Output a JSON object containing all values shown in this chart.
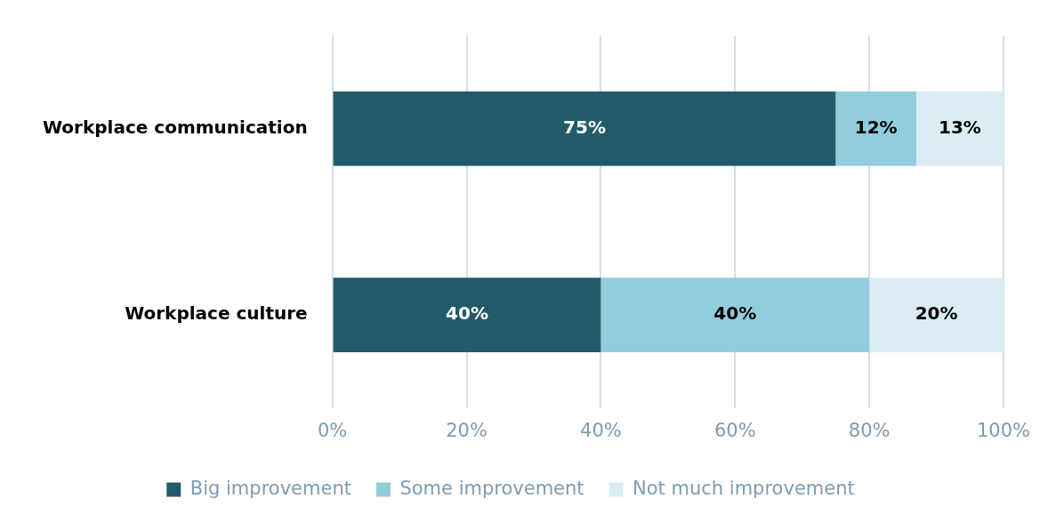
{
  "chart_data": {
    "type": "bar",
    "orientation": "horizontal",
    "stacked": true,
    "categories": [
      "Workplace communication",
      "Workplace culture"
    ],
    "series": [
      {
        "name": "Big improvement",
        "color": "#235a69",
        "values": [
          75,
          40
        ],
        "value_labels": [
          "75%",
          "40%"
        ]
      },
      {
        "name": "Some improvement",
        "color": "#92cddc",
        "values": [
          12,
          40
        ],
        "value_labels": [
          "12%",
          "40%"
        ]
      },
      {
        "name": "Not much improvement",
        "color": "#dbedf3",
        "values": [
          13,
          20
        ],
        "value_labels": [
          "13%",
          "20%"
        ]
      }
    ],
    "xlim": [
      0,
      100
    ],
    "xticks": [
      {
        "value": 0,
        "label": "0%"
      },
      {
        "value": 20,
        "label": "20%"
      },
      {
        "value": 40,
        "label": "40%"
      },
      {
        "value": 60,
        "label": "60%"
      },
      {
        "value": 80,
        "label": "80%"
      },
      {
        "value": 100,
        "label": "100%"
      }
    ],
    "grid": "x",
    "legend": "bottom"
  }
}
